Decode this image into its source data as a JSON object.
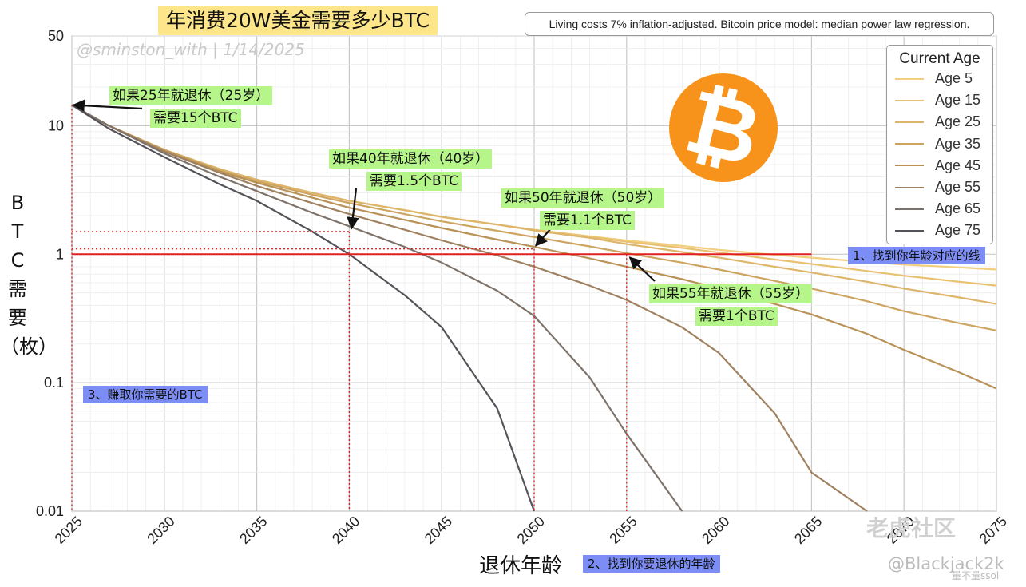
{
  "title": "年消费20W美金需要多少BTC",
  "watermark_handle": "@sminston_with  |  1/14/2025",
  "note": "Living costs 7% inflation-adjusted. Bitcoin price model: median power law regression.",
  "y_axis_label": [
    "B",
    "T",
    "C",
    "需",
    "要",
    "（枚）"
  ],
  "x_axis_label": "退休年龄",
  "annotations": {
    "a25_line1": "如果25年就退休（25岁）",
    "a25_line2": "需要15个BTC",
    "a40_line1": "如果40年就退休（40岁）",
    "a40_line2": "需要1.5个BTC",
    "a50_line1": "如果50年就退休（50岁）",
    "a50_line2": "需要1.1个BTC",
    "a55_line1": "如果55年就退休（55岁）",
    "a55_line2": "需要1个BTC"
  },
  "steps": {
    "step1": "1、找到你年龄对应的线",
    "step2": "2、找到你要退休的年龄",
    "step3": "3、赚取你需要的BTC"
  },
  "logo_symbol": "₿",
  "footer_watermarks": {
    "site": "老虎社区",
    "user": "@Blackjack2k",
    "small": "量不量ssol"
  },
  "chart_data": {
    "type": "line",
    "title": "年消费20W美金需要多少BTC",
    "xlabel": "退休年龄",
    "ylabel": "BTC需要（枚）",
    "y_scale": "log",
    "xlim": [
      2025,
      2075
    ],
    "ylim": [
      0.01,
      50
    ],
    "x_ticks": [
      "2025",
      "2030",
      "2035",
      "2040",
      "2045",
      "2050",
      "2055",
      "2060",
      "2065",
      "2070",
      "2075"
    ],
    "y_ticks": [
      "0.01",
      "0.1",
      "1",
      "10",
      "50"
    ],
    "legend_title": "Current Age",
    "legend_position": "top-right",
    "grid": true,
    "x": [
      2025,
      2027,
      2030,
      2033,
      2035,
      2038,
      2040,
      2043,
      2045,
      2048,
      2050,
      2053,
      2055,
      2058,
      2060,
      2063,
      2065,
      2068,
      2070,
      2073,
      2075
    ],
    "series": [
      {
        "name": "Age 5",
        "color": "#f2cf7e",
        "values": [
          14.5,
          10,
          6.5,
          4.6,
          3.8,
          3.0,
          2.6,
          2.2,
          1.95,
          1.7,
          1.55,
          1.38,
          1.28,
          1.16,
          1.08,
          0.99,
          0.94,
          0.87,
          0.83,
          0.79,
          0.76
        ]
      },
      {
        "name": "Age 15",
        "color": "#e8c172",
        "values": [
          14.5,
          10,
          6.5,
          4.6,
          3.8,
          3.0,
          2.6,
          2.2,
          1.95,
          1.7,
          1.55,
          1.37,
          1.25,
          1.12,
          1.03,
          0.91,
          0.84,
          0.74,
          0.68,
          0.61,
          0.57
        ]
      },
      {
        "name": "Age 25",
        "color": "#ddb56b",
        "values": [
          14.5,
          10,
          6.5,
          4.6,
          3.8,
          3.0,
          2.6,
          2.2,
          1.95,
          1.7,
          1.53,
          1.34,
          1.2,
          1.04,
          0.94,
          0.8,
          0.72,
          0.61,
          0.54,
          0.46,
          0.41
        ]
      },
      {
        "name": "Age 35",
        "color": "#cda561",
        "values": [
          14.5,
          10,
          6.5,
          4.5,
          3.7,
          2.9,
          2.5,
          2.05,
          1.8,
          1.52,
          1.36,
          1.15,
          1.02,
          0.86,
          0.76,
          0.62,
          0.54,
          0.43,
          0.36,
          0.29,
          0.255
        ]
      },
      {
        "name": "Age 45",
        "color": "#b89256",
        "values": [
          14.5,
          10,
          6.4,
          4.4,
          3.6,
          2.75,
          2.3,
          1.85,
          1.6,
          1.3,
          1.14,
          0.93,
          0.8,
          0.64,
          0.54,
          0.41,
          0.34,
          0.24,
          0.18,
          0.12,
          0.09
        ]
      },
      {
        "name": "Age 55",
        "color": "#9f8160",
        "values": [
          14.5,
          10,
          6.3,
          4.3,
          3.4,
          2.5,
          2.05,
          1.55,
          1.28,
          0.98,
          0.8,
          0.57,
          0.44,
          0.27,
          0.17,
          0.058,
          0.02,
          0.01,
          null,
          null,
          null
        ]
      },
      {
        "name": "Age 65",
        "color": "#7e736a",
        "values": [
          14.5,
          10,
          6.1,
          4.0,
          3.1,
          2.1,
          1.65,
          1.14,
          0.86,
          0.52,
          0.33,
          0.11,
          0.04,
          0.01,
          null,
          null,
          null,
          null,
          null,
          null,
          null
        ]
      },
      {
        "name": "Age 75",
        "color": "#555259",
        "values": [
          14.5,
          9.5,
          5.7,
          3.5,
          2.6,
          1.5,
          1.0,
          0.48,
          0.27,
          0.063,
          0.01,
          null,
          null,
          null,
          null,
          null,
          null,
          null,
          null,
          null,
          null
        ]
      }
    ]
  }
}
